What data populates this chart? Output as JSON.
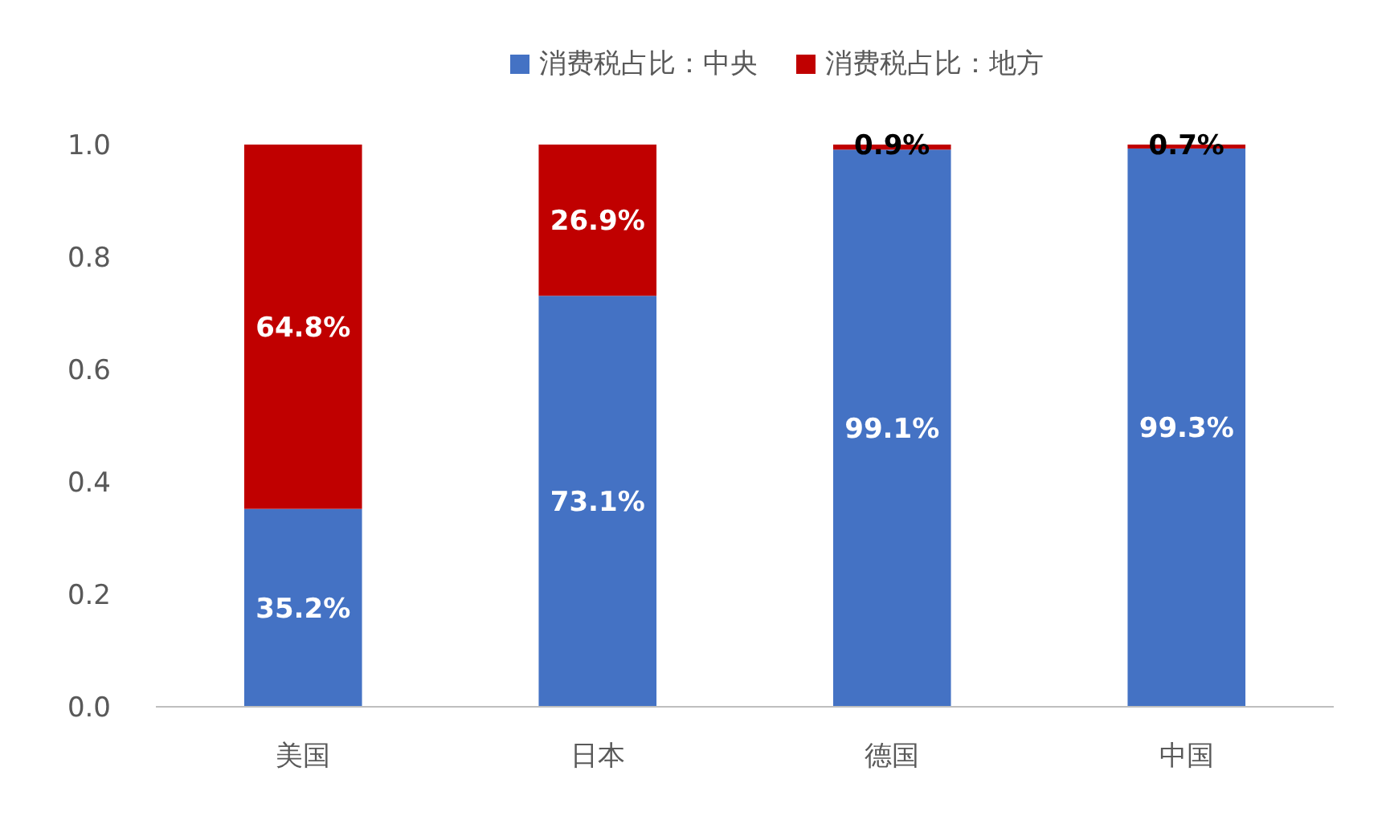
{
  "chart_data": {
    "type": "bar",
    "stacked": true,
    "categories": [
      "美国",
      "日本",
      "德国",
      "中国"
    ],
    "series": [
      {
        "name": "消费税占比：中央",
        "color": "#4472c4",
        "values": [
          0.352,
          0.731,
          0.991,
          0.993
        ],
        "value_labels": [
          "35.2%",
          "73.1%",
          "99.1%",
          "99.3%"
        ]
      },
      {
        "name": "消费税占比：地方",
        "color": "#c00000",
        "values": [
          0.648,
          0.269,
          0.009,
          0.007
        ],
        "value_labels": [
          "64.8%",
          "26.9%",
          "0.9%",
          "0.7%"
        ]
      }
    ],
    "ylim": [
      0,
      1
    ],
    "yticks": [
      {
        "value": 0,
        "label": "0.0"
      },
      {
        "value": 0.2,
        "label": "0.2"
      },
      {
        "value": 0.4,
        "label": "0.4"
      },
      {
        "value": 0.6,
        "label": "0.6"
      },
      {
        "value": 0.8,
        "label": "0.8"
      },
      {
        "value": 1,
        "label": "1.0"
      }
    ],
    "grid": false,
    "legend": "top"
  }
}
